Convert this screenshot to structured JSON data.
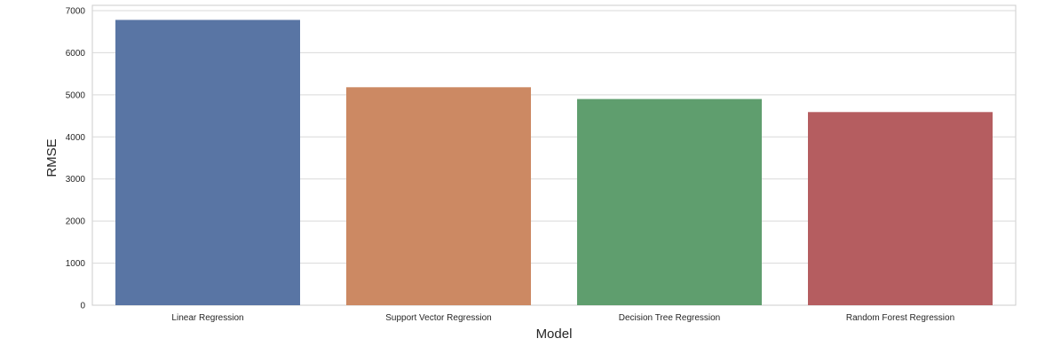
{
  "chart_data": {
    "type": "bar",
    "title": "",
    "xlabel": "Model",
    "ylabel": "RMSE",
    "categories": [
      "Linear Regression",
      "Support Vector Regression",
      "Decision Tree Regression",
      "Random Forest Regression"
    ],
    "values": [
      6780,
      5180,
      4900,
      4590
    ],
    "colors": [
      "#5975a4",
      "#cc8963",
      "#5f9e6e",
      "#b55d60"
    ],
    "ylim": [
      0,
      7000
    ],
    "yticks": [
      0,
      1000,
      2000,
      3000,
      4000,
      5000,
      6000,
      7000
    ],
    "grid": "horizontal"
  }
}
